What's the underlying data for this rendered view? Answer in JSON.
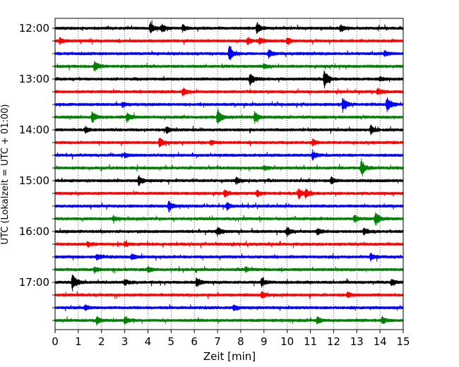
{
  "chart_data": {
    "type": "line",
    "title": "",
    "xlabel": "Zeit  [min]",
    "ylabel": "UTC (Lokalzeit = UTC + 01:00)",
    "xlim": [
      0,
      15
    ],
    "x_ticks": [
      0,
      1,
      2,
      3,
      4,
      5,
      6,
      7,
      8,
      9,
      10,
      11,
      12,
      13,
      14,
      15
    ],
    "x_tick_labels": [
      "0",
      "1",
      "2",
      "3",
      "4",
      "5",
      "6",
      "7",
      "8",
      "9",
      "10",
      "11",
      "12",
      "13",
      "14",
      "15"
    ],
    "y_tick_labels": [
      "12:00",
      "13:00",
      "14:00",
      "15:00",
      "16:00",
      "17:00"
    ],
    "vertical_grid": true,
    "minutes_per_trace": 15,
    "trace_colors": [
      "#000000",
      "#ff0000",
      "#0000ff",
      "#008000"
    ],
    "traces": [
      {
        "start": "12:00",
        "events": [
          [
            4.1,
            0.55
          ],
          [
            4.6,
            0.4
          ],
          [
            5.5,
            0.3
          ],
          [
            8.7,
            0.5
          ],
          [
            12.3,
            0.3
          ]
        ]
      },
      {
        "start": "12:15",
        "events": [
          [
            0.2,
            0.25
          ],
          [
            8.3,
            0.35
          ],
          [
            8.8,
            0.3
          ],
          [
            10.0,
            0.25
          ]
        ]
      },
      {
        "start": "12:30",
        "events": [
          [
            7.5,
            0.75
          ],
          [
            9.2,
            0.35
          ],
          [
            14.2,
            0.25
          ]
        ]
      },
      {
        "start": "12:45",
        "events": [
          [
            1.7,
            0.45
          ],
          [
            9.0,
            0.2
          ]
        ]
      },
      {
        "start": "13:00",
        "events": [
          [
            8.4,
            0.55
          ],
          [
            11.6,
            0.85
          ],
          [
            14.0,
            0.2
          ]
        ]
      },
      {
        "start": "13:15",
        "events": [
          [
            5.5,
            0.35
          ],
          [
            13.9,
            0.3
          ]
        ]
      },
      {
        "start": "13:30",
        "events": [
          [
            12.4,
            0.7
          ],
          [
            14.3,
            0.7
          ],
          [
            2.9,
            0.2
          ]
        ]
      },
      {
        "start": "13:45",
        "events": [
          [
            1.6,
            0.5
          ],
          [
            3.1,
            0.4
          ],
          [
            7.0,
            0.75
          ],
          [
            8.6,
            0.5
          ]
        ]
      },
      {
        "start": "14:00",
        "events": [
          [
            1.3,
            0.25
          ],
          [
            4.8,
            0.3
          ],
          [
            13.6,
            0.4
          ]
        ]
      },
      {
        "start": "14:15",
        "events": [
          [
            4.5,
            0.5
          ],
          [
            6.7,
            0.2
          ],
          [
            11.1,
            0.25
          ]
        ]
      },
      {
        "start": "14:30",
        "events": [
          [
            11.1,
            0.4
          ],
          [
            3.0,
            0.2
          ]
        ]
      },
      {
        "start": "14:45",
        "events": [
          [
            13.2,
            0.75
          ],
          [
            9.0,
            0.2
          ]
        ]
      },
      {
        "start": "15:00",
        "events": [
          [
            3.6,
            0.5
          ],
          [
            7.8,
            0.3
          ],
          [
            11.9,
            0.3
          ]
        ]
      },
      {
        "start": "15:15",
        "events": [
          [
            7.3,
            0.35
          ],
          [
            8.7,
            0.25
          ],
          [
            10.5,
            0.45
          ],
          [
            10.8,
            0.35
          ]
        ]
      },
      {
        "start": "15:30",
        "events": [
          [
            4.9,
            0.55
          ],
          [
            7.4,
            0.3
          ]
        ]
      },
      {
        "start": "15:45",
        "events": [
          [
            13.8,
            0.7
          ],
          [
            12.9,
            0.3
          ],
          [
            2.5,
            0.2
          ]
        ]
      },
      {
        "start": "16:00",
        "events": [
          [
            7.0,
            0.35
          ],
          [
            10.0,
            0.4
          ],
          [
            11.3,
            0.3
          ],
          [
            13.3,
            0.3
          ]
        ]
      },
      {
        "start": "16:15",
        "events": [
          [
            1.4,
            0.25
          ],
          [
            3.0,
            0.2
          ]
        ]
      },
      {
        "start": "16:30",
        "events": [
          [
            1.8,
            0.25
          ],
          [
            3.3,
            0.25
          ],
          [
            13.6,
            0.3
          ]
        ]
      },
      {
        "start": "16:45",
        "events": [
          [
            1.7,
            0.25
          ],
          [
            4.0,
            0.25
          ],
          [
            8.2,
            0.2
          ]
        ]
      },
      {
        "start": "17:00",
        "events": [
          [
            0.75,
            0.8
          ],
          [
            3.0,
            0.25
          ],
          [
            6.1,
            0.45
          ],
          [
            8.9,
            0.4
          ],
          [
            14.5,
            0.3
          ]
        ]
      },
      {
        "start": "17:15",
        "events": [
          [
            8.9,
            0.3
          ],
          [
            12.6,
            0.25
          ]
        ]
      },
      {
        "start": "17:30",
        "events": [
          [
            1.3,
            0.25
          ],
          [
            7.7,
            0.25
          ]
        ]
      },
      {
        "start": "17:45",
        "events": [
          [
            1.8,
            0.35
          ],
          [
            3.0,
            0.3
          ],
          [
            11.3,
            0.3
          ],
          [
            14.1,
            0.3
          ]
        ]
      }
    ]
  }
}
